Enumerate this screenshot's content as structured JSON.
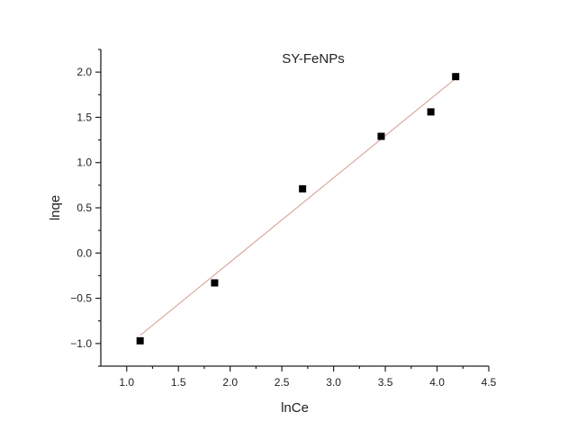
{
  "chart_data": {
    "type": "scatter",
    "title": "SY-FeNPs",
    "xlabel": "lnCe",
    "ylabel": "lnqe",
    "xlim": [
      0.75,
      4.5
    ],
    "ylim": [
      -1.25,
      2.25
    ],
    "x_ticks": [
      "1.0",
      "1.5",
      "2.0",
      "2.5",
      "3.0",
      "3.5",
      "4.0",
      "4.5"
    ],
    "y_ticks": [
      "−1.0",
      "−0.5",
      "0.0",
      "0.5",
      "1.0",
      "1.5",
      "2.0"
    ],
    "grid": false,
    "series": [
      {
        "marker": "square",
        "color": "#000000",
        "x": [
          1.13,
          1.85,
          2.7,
          3.46,
          3.94,
          4.18
        ],
        "y": [
          -0.97,
          -0.33,
          0.71,
          1.29,
          1.56,
          1.95
        ]
      }
    ],
    "fit_line": {
      "color": "#d9a9a0",
      "x": [
        1.13,
        4.18
      ],
      "y": [
        -0.91,
        1.93
      ]
    }
  }
}
